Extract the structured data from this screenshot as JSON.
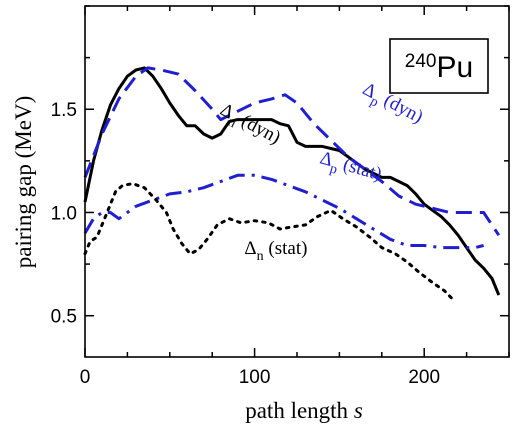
{
  "chart_data": {
    "type": "line",
    "xlabel": "path length s",
    "xlabel_text": "path length ",
    "xlabel_var": "s",
    "ylabel": "pairing gap (MeV)",
    "xlim": [
      0,
      250
    ],
    "ylim": [
      0.3,
      2.0
    ],
    "x_ticks": [
      0,
      100,
      200
    ],
    "y_ticks": [
      0.5,
      1.0,
      1.5
    ],
    "x_tick_labels": [
      "0",
      "100",
      "200"
    ],
    "y_tick_labels": [
      "0.5",
      "1.0",
      "1.5"
    ],
    "grid": false,
    "inset_label": "240Pu",
    "inset_label_mass": "240",
    "inset_label_symbol": "Pu",
    "series": [
      {
        "name": "Δn (dyn)",
        "color": "#000000",
        "style": "solid",
        "x": [
          0,
          5,
          10,
          15,
          20,
          25,
          30,
          35,
          40,
          45,
          50,
          55,
          60,
          65,
          70,
          75,
          80,
          85,
          90,
          95,
          100,
          105,
          110,
          115,
          120,
          125,
          130,
          135,
          140,
          145,
          150,
          155,
          160,
          165,
          170,
          175,
          180,
          185,
          190,
          195,
          200,
          205,
          210,
          215,
          220,
          225,
          230,
          235,
          240,
          244
        ],
        "y": [
          1.05,
          1.25,
          1.4,
          1.52,
          1.6,
          1.66,
          1.69,
          1.7,
          1.66,
          1.6,
          1.53,
          1.47,
          1.42,
          1.42,
          1.38,
          1.36,
          1.38,
          1.44,
          1.45,
          1.45,
          1.45,
          1.45,
          1.45,
          1.43,
          1.42,
          1.34,
          1.32,
          1.32,
          1.32,
          1.31,
          1.3,
          1.27,
          1.24,
          1.21,
          1.19,
          1.17,
          1.17,
          1.15,
          1.13,
          1.09,
          1.04,
          1.01,
          0.98,
          0.94,
          0.89,
          0.83,
          0.77,
          0.73,
          0.68,
          0.6
        ]
      },
      {
        "name": "Δp (dyn)",
        "color": "#1f1fd0",
        "style": "dashed",
        "x": [
          0,
          10,
          20,
          30,
          37,
          45,
          55,
          65,
          75,
          80,
          90,
          100,
          110,
          118,
          125,
          135,
          145,
          155,
          165,
          175,
          185,
          195,
          205,
          215,
          225,
          235,
          244
        ],
        "y": [
          1.17,
          1.38,
          1.55,
          1.66,
          1.7,
          1.69,
          1.67,
          1.59,
          1.5,
          1.45,
          1.49,
          1.53,
          1.55,
          1.57,
          1.53,
          1.43,
          1.35,
          1.27,
          1.21,
          1.15,
          1.08,
          1.04,
          1.02,
          1.0,
          1.0,
          1.0,
          0.89
        ]
      },
      {
        "name": "Δp (stat)",
        "color": "#1f1fd0",
        "style": "dashdot",
        "x": [
          0,
          5,
          10,
          15,
          20,
          30,
          40,
          50,
          60,
          70,
          80,
          90,
          100,
          110,
          120,
          130,
          140,
          150,
          160,
          170,
          180,
          190,
          200,
          210,
          220,
          230,
          235
        ],
        "y": [
          0.9,
          0.97,
          1.0,
          1.0,
          0.97,
          1.03,
          1.06,
          1.09,
          1.1,
          1.12,
          1.15,
          1.18,
          1.18,
          1.16,
          1.13,
          1.1,
          1.06,
          1.02,
          0.97,
          0.92,
          0.87,
          0.84,
          0.84,
          0.83,
          0.83,
          0.83,
          0.84
        ]
      },
      {
        "name": "Δn (stat)",
        "color": "#000000",
        "style": "dotted",
        "x": [
          0,
          3,
          7,
          12,
          18,
          22,
          28,
          35,
          42,
          48,
          52,
          57,
          62,
          67,
          72,
          78,
          85,
          92,
          100,
          108,
          115,
          122,
          130,
          137,
          145,
          152,
          160,
          168,
          175,
          183,
          190,
          197,
          205,
          212,
          218
        ],
        "y": [
          0.8,
          0.86,
          0.88,
          0.98,
          1.1,
          1.13,
          1.14,
          1.12,
          1.06,
          1.0,
          0.92,
          0.85,
          0.8,
          0.82,
          0.87,
          0.94,
          0.97,
          0.95,
          0.96,
          0.95,
          0.92,
          0.93,
          0.94,
          0.98,
          1.01,
          0.97,
          0.93,
          0.88,
          0.83,
          0.8,
          0.76,
          0.71,
          0.66,
          0.62,
          0.57
        ]
      }
    ],
    "annotations": [
      {
        "series_index": 0,
        "symbol": "Δ",
        "sub": "n",
        "text": " (dyn)",
        "color": "#000000",
        "x": 79,
        "y": 1.48,
        "rotate": 28
      },
      {
        "series_index": 1,
        "symbol": "Δ",
        "sub": "p",
        "text": " (dyn)",
        "color": "#1f1fd0",
        "x": 163,
        "y": 1.58,
        "rotate": 28
      },
      {
        "series_index": 2,
        "symbol": "Δ",
        "sub": "p",
        "text": " (stat)",
        "color": "#1f1fd0",
        "x": 138,
        "y": 1.24,
        "rotate": 16
      },
      {
        "series_index": 3,
        "symbol": "Δ",
        "sub": "n",
        "text": " (stat)",
        "color": "#000000",
        "x": 94,
        "y": 0.8,
        "rotate": 0
      }
    ]
  }
}
